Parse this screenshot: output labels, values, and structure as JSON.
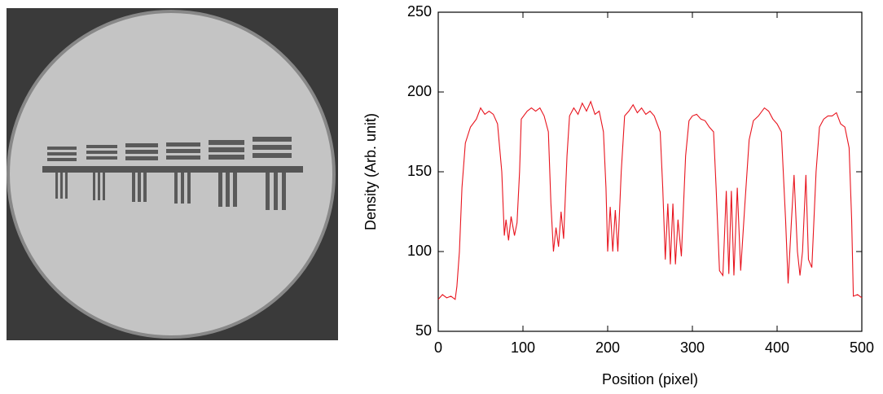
{
  "chart_data": {
    "type": "line",
    "xlabel": "Position (pixel)",
    "ylabel": "Density (Arb. unit)",
    "xlim": [
      0,
      500
    ],
    "xticks": [
      0,
      100,
      200,
      300,
      400,
      500
    ],
    "ylim": [
      50,
      250
    ],
    "yticks": [
      50,
      100,
      150,
      200,
      250
    ],
    "x": [
      0,
      5,
      10,
      15,
      20,
      22,
      25,
      28,
      32,
      38,
      45,
      50,
      55,
      60,
      65,
      70,
      75,
      78,
      80,
      83,
      86,
      90,
      93,
      96,
      98,
      105,
      110,
      115,
      120,
      125,
      130,
      133,
      136,
      139,
      142,
      145,
      148,
      152,
      155,
      160,
      165,
      170,
      175,
      180,
      185,
      190,
      195,
      198,
      200,
      203,
      206,
      209,
      212,
      216,
      220,
      225,
      230,
      235,
      240,
      245,
      250,
      255,
      262,
      265,
      268,
      271,
      274,
      277,
      280,
      283,
      287,
      292,
      296,
      300,
      305,
      310,
      315,
      320,
      325,
      328,
      332,
      336,
      340,
      343,
      346,
      349,
      353,
      357,
      362,
      367,
      372,
      378,
      385,
      390,
      395,
      400,
      405,
      410,
      413,
      417,
      420,
      424,
      427,
      430,
      434,
      437,
      441,
      446,
      450,
      455,
      460,
      465,
      470,
      475,
      480,
      485,
      488,
      490,
      495,
      500
    ],
    "series": [
      {
        "color": "#e8141e",
        "values": [
          70,
          73,
          71,
          72,
          70,
          78,
          100,
          140,
          168,
          178,
          183,
          190,
          186,
          188,
          186,
          180,
          150,
          110,
          120,
          107,
          122,
          110,
          118,
          150,
          183,
          188,
          190,
          188,
          190,
          185,
          175,
          130,
          100,
          115,
          103,
          125,
          108,
          160,
          185,
          190,
          186,
          193,
          188,
          194,
          186,
          188,
          175,
          140,
          100,
          128,
          100,
          126,
          100,
          150,
          185,
          188,
          192,
          187,
          190,
          186,
          188,
          185,
          175,
          140,
          95,
          130,
          92,
          130,
          92,
          120,
          97,
          160,
          182,
          185,
          186,
          183,
          182,
          178,
          175,
          140,
          88,
          85,
          138,
          86,
          138,
          85,
          140,
          88,
          130,
          170,
          182,
          185,
          190,
          188,
          183,
          180,
          175,
          120,
          80,
          120,
          148,
          100,
          85,
          100,
          148,
          95,
          90,
          150,
          178,
          183,
          185,
          185,
          187,
          180,
          178,
          165,
          120,
          72,
          73,
          71
        ]
      }
    ]
  }
}
